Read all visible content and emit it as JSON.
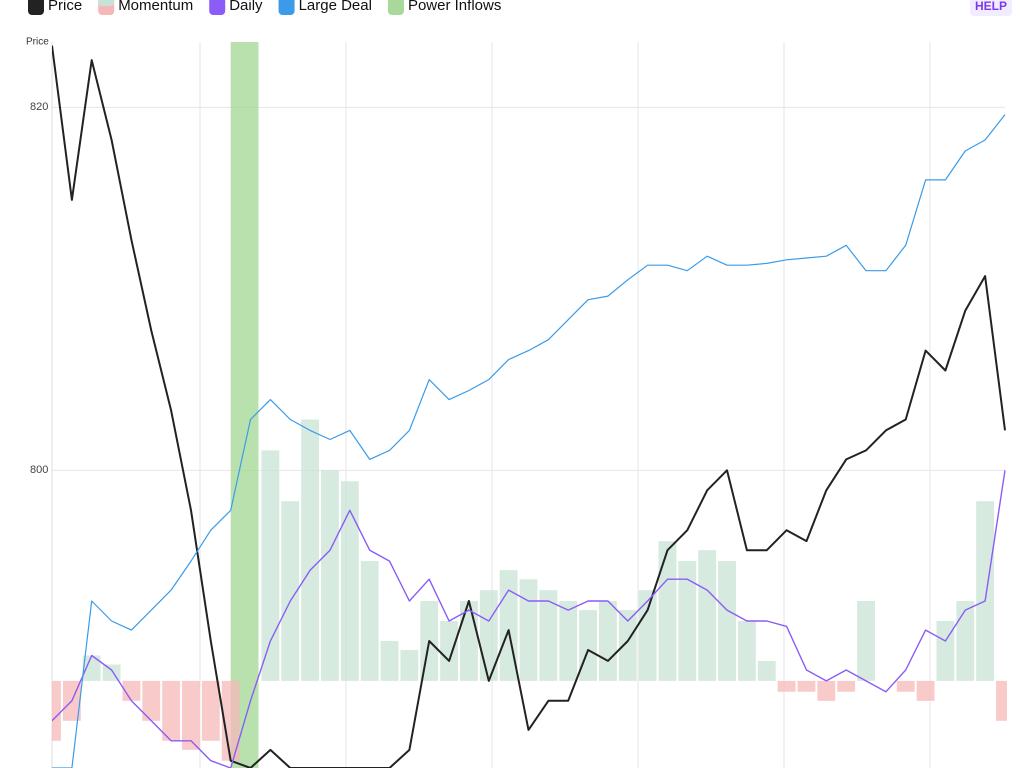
{
  "chart_data": {
    "type": "line",
    "ylabel": "Price",
    "help": "HELP",
    "ylim": [
      783.6,
      823.6
    ],
    "yticks": [
      800,
      820
    ],
    "xlim": [
      0,
      48
    ],
    "grid": true,
    "series": [
      {
        "name": "Price",
        "type": "line",
        "color": "#222222",
        "width": 2,
        "values": [
          823.4,
          814.9,
          822.6,
          818.2,
          812.7,
          807.7,
          803.3,
          797.8,
          790.6,
          784.0,
          783.6,
          784.6,
          783.6,
          783.6,
          783.6,
          783.6,
          783.6,
          783.6,
          784.6,
          790.6,
          789.5,
          792.8,
          788.4,
          791.2,
          785.7,
          787.3,
          787.3,
          790.1,
          789.5,
          790.6,
          792.3,
          795.6,
          796.7,
          798.9,
          800.0,
          795.6,
          795.6,
          796.7,
          796.1,
          798.9,
          800.6,
          801.1,
          802.2,
          802.8,
          806.6,
          805.5,
          808.8,
          810.7,
          802.2
        ]
      },
      {
        "name": "Momentum",
        "type": "bar",
        "color": "#c8e3d6",
        "negative_color": "#f5b8b8",
        "baseline": 788.4,
        "values": [
          785.1,
          786.2,
          789.8,
          789.3,
          787.3,
          786.2,
          785.1,
          784.6,
          785.1,
          784.0,
          788.4,
          801.1,
          798.3,
          802.8,
          800.0,
          799.4,
          795.0,
          790.6,
          790.1,
          792.8,
          791.7,
          792.8,
          793.4,
          794.5,
          794.0,
          793.4,
          792.8,
          792.3,
          792.8,
          792.3,
          793.4,
          796.1,
          795.0,
          795.6,
          795.0,
          791.7,
          789.5,
          787.8,
          787.8,
          787.3,
          787.8,
          792.8,
          788.4,
          787.8,
          787.3,
          791.7,
          792.8,
          798.3,
          786.2
        ]
      },
      {
        "name": "Daily",
        "type": "line",
        "color": "#8b5cf6",
        "width": 1.4,
        "values": [
          786.2,
          787.3,
          789.8,
          789.0,
          787.3,
          786.2,
          785.1,
          785.1,
          784.0,
          783.6,
          787.3,
          790.6,
          792.8,
          794.5,
          795.6,
          797.8,
          795.6,
          795.0,
          792.8,
          794.0,
          791.7,
          792.3,
          791.7,
          793.4,
          792.8,
          792.8,
          792.3,
          792.8,
          792.8,
          791.7,
          792.8,
          794.0,
          794.0,
          793.4,
          792.3,
          791.7,
          791.7,
          791.4,
          789.0,
          788.4,
          789.0,
          788.4,
          787.8,
          789.0,
          791.2,
          790.6,
          792.3,
          792.8,
          800.0
        ]
      },
      {
        "name": "Large Deal",
        "type": "line",
        "color": "#3b9be8",
        "width": 1.2,
        "values": [
          783.6,
          783.6,
          792.8,
          791.7,
          791.2,
          792.3,
          793.4,
          795.0,
          796.7,
          797.8,
          802.8,
          803.9,
          802.8,
          802.2,
          801.7,
          802.2,
          800.6,
          801.1,
          802.2,
          805.0,
          803.9,
          804.4,
          805.0,
          806.1,
          806.6,
          807.2,
          808.3,
          809.4,
          809.6,
          810.5,
          811.3,
          811.3,
          811.0,
          811.8,
          811.3,
          811.3,
          811.4,
          811.6,
          811.7,
          811.8,
          812.4,
          811.0,
          811.0,
          812.4,
          816.0,
          816.0,
          817.6,
          818.2,
          819.6
        ]
      },
      {
        "name": "Power Inflows",
        "type": "band",
        "color": "#a8d99a",
        "start": 9,
        "end": 10.4
      }
    ]
  }
}
